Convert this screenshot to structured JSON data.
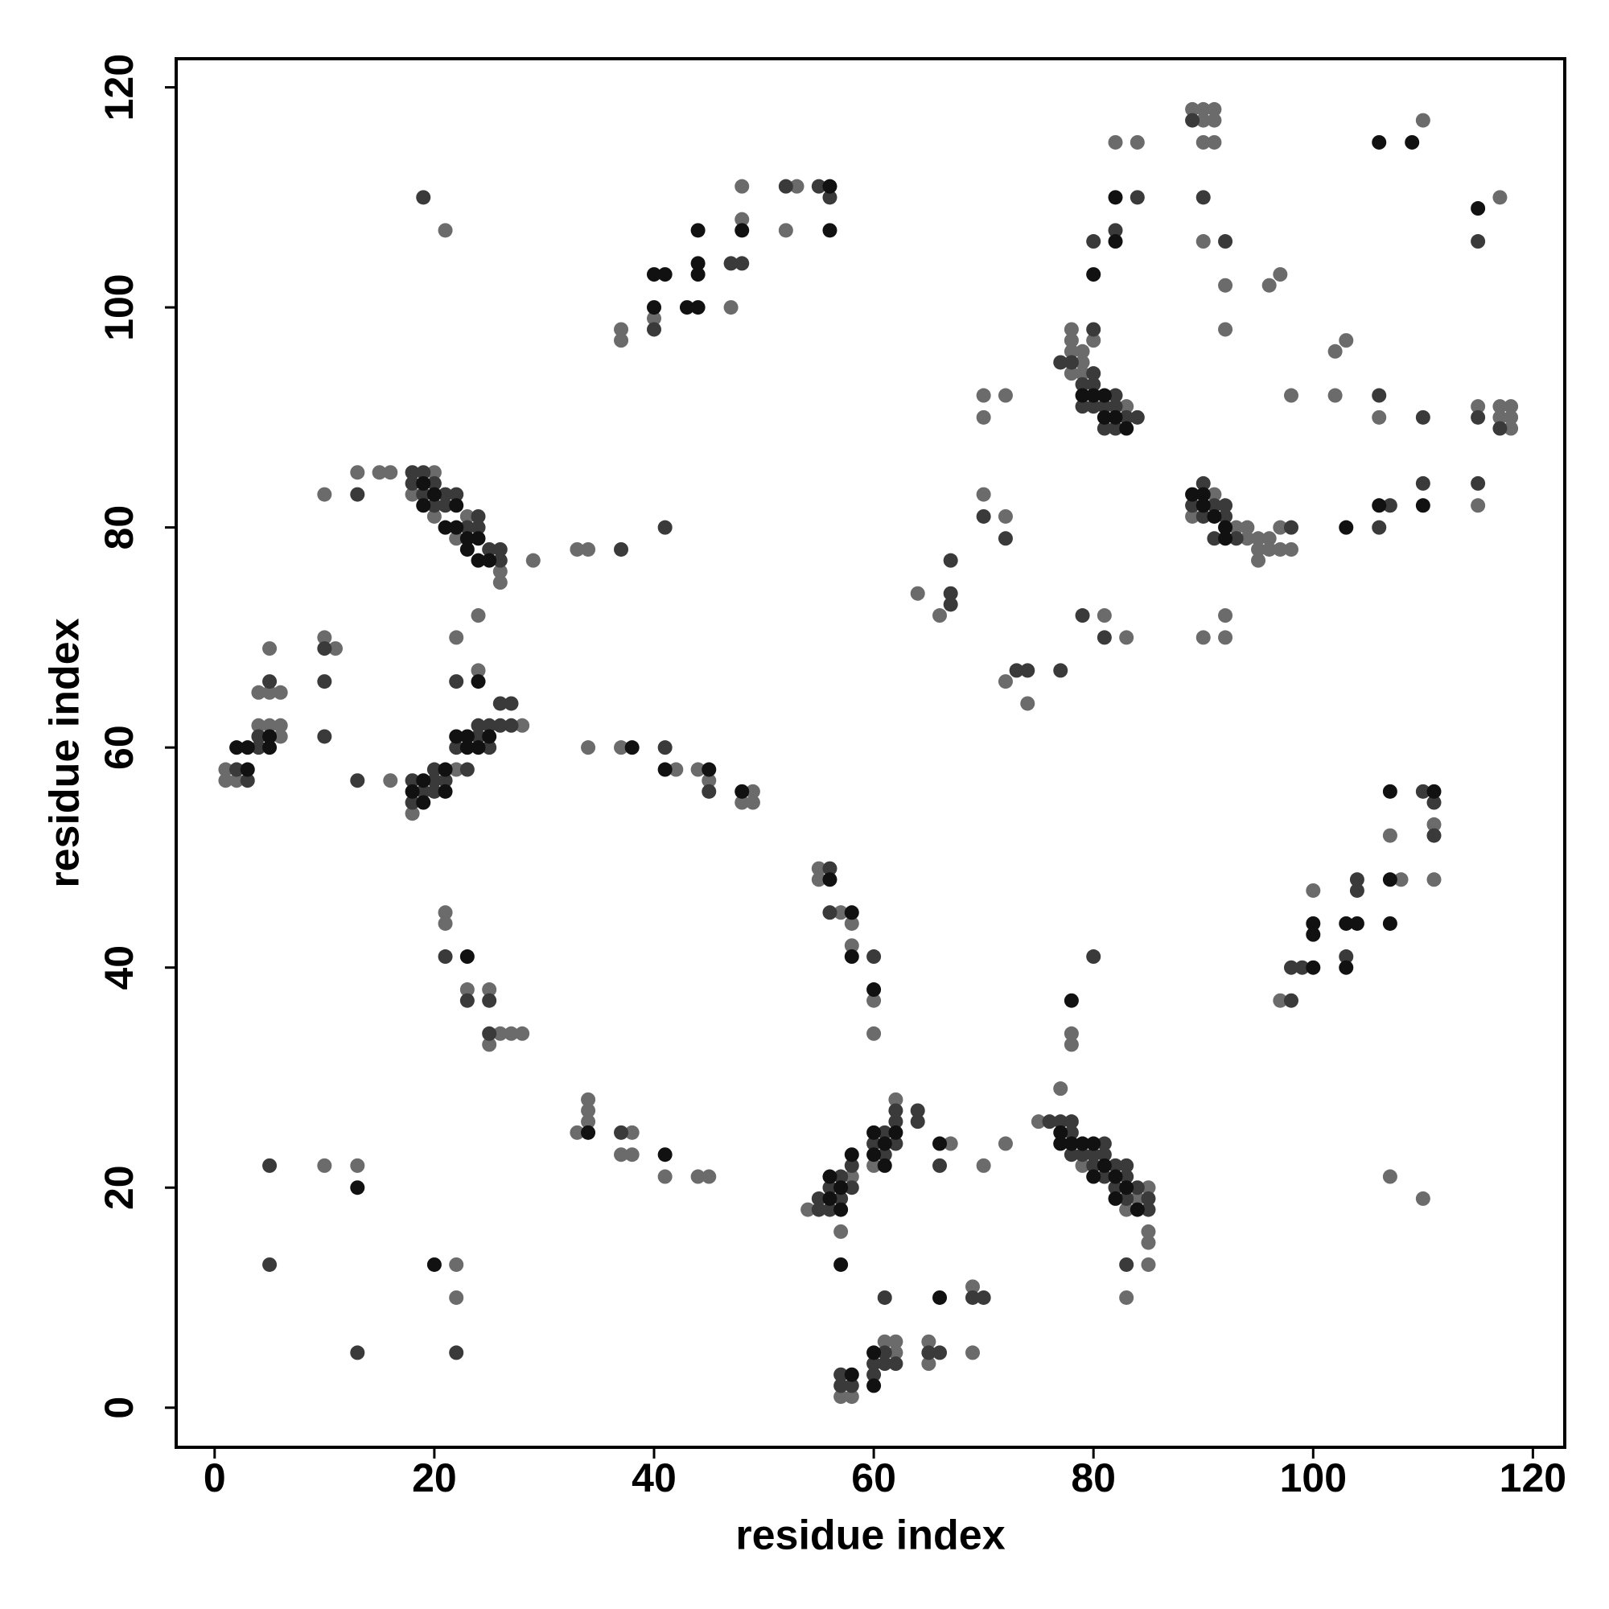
{
  "chart_data": {
    "type": "scatter",
    "x_label": "residue index",
    "y_label": "residue index",
    "xlim": [
      -3.5,
      122.9
    ],
    "ylim": [
      -3.6,
      122.6
    ],
    "xticks": [
      0,
      20,
      40,
      60,
      80,
      100,
      120
    ],
    "yticks": [
      0,
      20,
      40,
      60,
      80,
      100,
      120
    ],
    "grid": false,
    "series": [
      {
        "color": "#6b6b6b",
        "x": [
          10,
          13,
          22,
          22,
          21,
          21,
          23,
          25,
          25,
          26,
          27,
          28,
          33,
          34,
          34,
          34,
          38,
          37,
          38,
          41,
          44,
          45,
          54,
          58,
          57,
          57,
          58,
          61,
          62,
          62,
          65,
          65,
          69,
          69,
          60,
          62,
          67,
          70,
          72,
          75,
          77,
          79,
          83,
          84,
          85,
          85,
          85,
          85,
          83,
          78,
          78,
          55,
          55,
          57,
          58,
          58,
          60,
          60,
          97,
          100,
          107,
          108,
          111,
          111,
          107,
          110,
          1,
          1,
          2,
          4,
          4,
          5,
          5,
          5,
          6,
          6,
          6,
          10,
          11,
          16,
          10,
          13,
          15,
          16,
          18,
          22,
          28,
          22,
          24,
          24,
          18,
          20,
          20,
          22,
          23,
          26,
          26,
          29,
          21,
          33,
          34,
          34,
          37,
          42,
          44,
          45,
          48,
          49,
          49,
          37,
          37,
          40,
          47,
          48,
          48,
          53,
          52,
          64,
          66,
          70,
          70,
          70,
          72,
          72,
          72,
          74,
          78,
          78,
          78,
          78,
          79,
          79,
          79,
          80,
          83,
          81,
          83,
          82,
          84,
          89,
          90,
          90,
          90,
          91,
          91,
          91,
          90,
          92,
          92,
          96,
          97,
          98,
          102,
          103,
          102,
          106,
          110,
          117,
          89,
          91,
          93,
          94,
          94,
          95,
          95,
          95,
          96,
          96,
          97,
          97,
          98,
          90,
          92,
          92,
          115,
          115,
          117,
          117,
          118,
          118,
          118
        ],
        "values": [
          22,
          22,
          13,
          10,
          45,
          44,
          38,
          38,
          33,
          34,
          34,
          34,
          25,
          28,
          27,
          26,
          25,
          23,
          23,
          21,
          21,
          21,
          18,
          21,
          16,
          1,
          1,
          6,
          6,
          5,
          6,
          4,
          11,
          5,
          22,
          28,
          24,
          22,
          24,
          26,
          29,
          22,
          18,
          19,
          20,
          16,
          15,
          13,
          10,
          34,
          33,
          49,
          48,
          45,
          44,
          42,
          37,
          34,
          37,
          47,
          52,
          48,
          53,
          48,
          21,
          19,
          58,
          57,
          57,
          62,
          65,
          69,
          65,
          62,
          65,
          62,
          61,
          70,
          69,
          57,
          83,
          85,
          85,
          85,
          54,
          58,
          62,
          70,
          67,
          72,
          83,
          85,
          81,
          79,
          81,
          76,
          75,
          77,
          107,
          78,
          78,
          60,
          60,
          58,
          58,
          57,
          55,
          56,
          55,
          98,
          97,
          99,
          100,
          111,
          108,
          111,
          107,
          74,
          72,
          92,
          90,
          83,
          92,
          81,
          66,
          64,
          98,
          97,
          96,
          94,
          96,
          95,
          94,
          97,
          91,
          72,
          70,
          115,
          115,
          118,
          118,
          117,
          115,
          118,
          117,
          115,
          106,
          102,
          98,
          102,
          103,
          92,
          96,
          97,
          92,
          90,
          117,
          110,
          81,
          83,
          80,
          80,
          79,
          79,
          78,
          77,
          79,
          78,
          80,
          78,
          78,
          70,
          72,
          70,
          82,
          91,
          91,
          90,
          91,
          90,
          89
        ]
      },
      {
        "color": "#3a3a3a",
        "x": [
          5,
          5,
          13,
          22,
          21,
          23,
          25,
          25,
          37,
          55,
          55,
          56,
          56,
          57,
          57,
          58,
          58,
          57,
          57,
          58,
          60,
          60,
          61,
          61,
          62,
          61,
          65,
          66,
          69,
          70,
          60,
          61,
          61,
          62,
          62,
          62,
          64,
          64,
          66,
          76,
          77,
          78,
          78,
          78,
          79,
          80,
          80,
          81,
          81,
          81,
          82,
          82,
          83,
          83,
          83,
          84,
          85,
          85,
          83,
          80,
          56,
          56,
          60,
          98,
          98,
          99,
          103,
          104,
          104,
          110,
          111,
          111,
          2,
          3,
          4,
          4,
          5,
          10,
          10,
          10,
          13,
          13,
          18,
          18,
          19,
          20,
          20,
          20,
          21,
          22,
          23,
          24,
          24,
          25,
          25,
          26,
          26,
          27,
          27,
          22,
          18,
          18,
          19,
          19,
          20,
          20,
          21,
          21,
          22,
          23,
          24,
          24,
          25,
          26,
          26,
          19,
          37,
          41,
          41,
          45,
          40,
          47,
          48,
          52,
          55,
          56,
          67,
          67,
          67,
          70,
          72,
          73,
          74,
          77,
          77,
          78,
          79,
          79,
          80,
          80,
          80,
          80,
          81,
          81,
          82,
          82,
          82,
          83,
          84,
          79,
          81,
          80,
          82,
          84,
          89,
          90,
          92,
          106,
          110,
          115,
          89,
          90,
          90,
          91,
          91,
          92,
          92,
          93,
          98,
          107,
          106,
          110,
          115,
          115,
          117
        ],
        "values": [
          22,
          13,
          5,
          5,
          41,
          37,
          37,
          34,
          25,
          19,
          18,
          20,
          18,
          21,
          19,
          22,
          20,
          3,
          2,
          2,
          4,
          3,
          5,
          4,
          4,
          10,
          5,
          5,
          10,
          10,
          24,
          25,
          23,
          27,
          26,
          24,
          27,
          26,
          22,
          26,
          26,
          26,
          25,
          23,
          23,
          23,
          22,
          24,
          23,
          21,
          22,
          20,
          22,
          21,
          19,
          20,
          19,
          18,
          13,
          41,
          49,
          45,
          41,
          37,
          40,
          40,
          41,
          48,
          47,
          56,
          55,
          52,
          58,
          57,
          61,
          60,
          66,
          69,
          66,
          61,
          57,
          83,
          57,
          55,
          56,
          57,
          56,
          58,
          57,
          60,
          58,
          62,
          61,
          62,
          60,
          64,
          62,
          64,
          62,
          66,
          85,
          84,
          85,
          83,
          84,
          82,
          83,
          82,
          83,
          80,
          81,
          80,
          78,
          78,
          77,
          110,
          78,
          80,
          60,
          56,
          98,
          104,
          104,
          111,
          111,
          110,
          77,
          74,
          73,
          81,
          79,
          67,
          67,
          67,
          95,
          95,
          93,
          91,
          98,
          94,
          93,
          91,
          91,
          89,
          92,
          91,
          89,
          90,
          90,
          72,
          70,
          106,
          107,
          110,
          117,
          110,
          106,
          92,
          90,
          106,
          82,
          84,
          81,
          82,
          79,
          82,
          81,
          79,
          80,
          82,
          80,
          84,
          84,
          90,
          89
        ]
      },
      {
        "color": "#111111",
        "x": [
          13,
          20,
          23,
          34,
          41,
          56,
          56,
          57,
          57,
          57,
          58,
          58,
          60,
          60,
          60,
          60,
          61,
          61,
          62,
          66,
          66,
          77,
          77,
          78,
          79,
          80,
          80,
          81,
          82,
          82,
          83,
          84,
          78,
          56,
          58,
          58,
          60,
          100,
          100,
          100,
          103,
          103,
          104,
          107,
          107,
          107,
          111,
          2,
          3,
          3,
          5,
          5,
          18,
          19,
          19,
          21,
          21,
          22,
          23,
          23,
          24,
          25,
          24,
          19,
          19,
          20,
          21,
          22,
          22,
          23,
          23,
          24,
          24,
          25,
          38,
          41,
          45,
          48,
          40,
          40,
          41,
          43,
          44,
          44,
          44,
          44,
          48,
          56,
          56,
          79,
          80,
          81,
          81,
          82,
          83,
          80,
          82,
          82,
          106,
          109,
          115,
          89,
          90,
          90,
          91,
          92,
          92,
          103,
          106,
          110
        ],
        "values": [
          20,
          13,
          41,
          25,
          23,
          21,
          19,
          20,
          18,
          13,
          23,
          3,
          5,
          2,
          25,
          23,
          24,
          22,
          25,
          24,
          10,
          25,
          24,
          24,
          24,
          24,
          21,
          22,
          21,
          19,
          20,
          18,
          37,
          48,
          45,
          41,
          38,
          44,
          43,
          40,
          44,
          40,
          44,
          56,
          48,
          44,
          56,
          60,
          60,
          58,
          61,
          60,
          56,
          57,
          55,
          58,
          56,
          61,
          61,
          60,
          60,
          61,
          66,
          84,
          82,
          83,
          80,
          82,
          80,
          79,
          78,
          79,
          77,
          77,
          60,
          58,
          58,
          56,
          103,
          100,
          103,
          100,
          107,
          104,
          103,
          100,
          107,
          111,
          107,
          92,
          92,
          92,
          90,
          90,
          89,
          103,
          110,
          106,
          115,
          115,
          109,
          83,
          83,
          82,
          81,
          80,
          79,
          80,
          82,
          82
        ]
      }
    ]
  }
}
